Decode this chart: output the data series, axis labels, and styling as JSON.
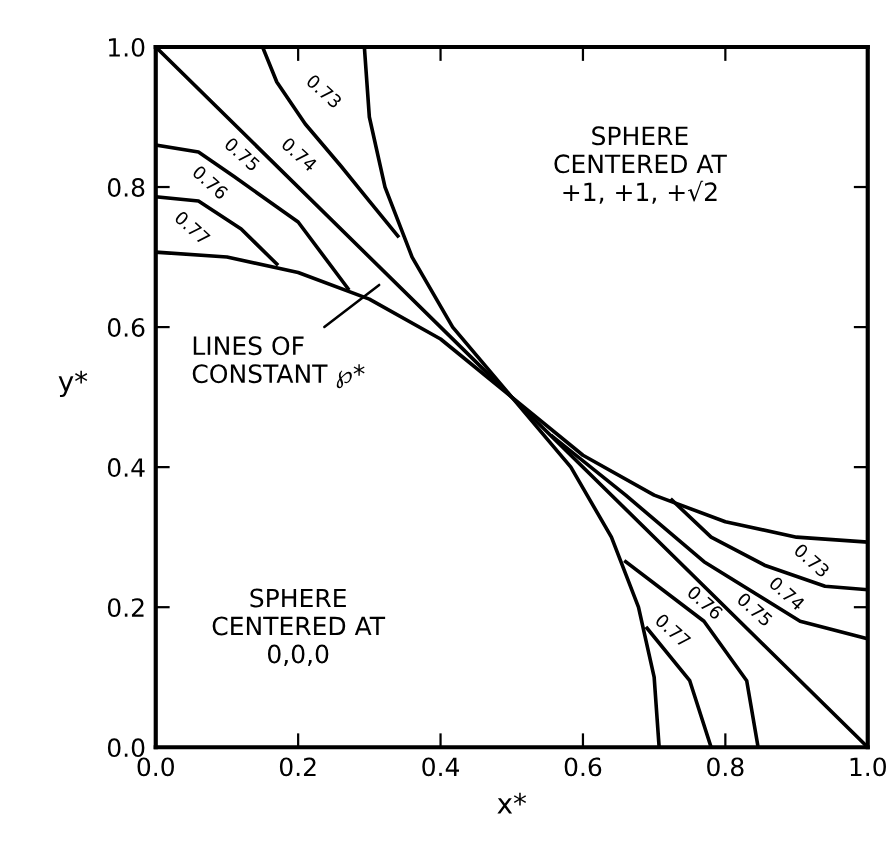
{
  "chart_data": {
    "type": "line",
    "xlabel": "x*",
    "ylabel": "y*",
    "xlim": [
      0,
      1
    ],
    "ylim": [
      0,
      1
    ],
    "xticks": [
      {
        "value": 0,
        "label": "0.0"
      },
      0.2,
      0.4,
      0.6,
      0.8,
      {
        "value": 1,
        "label": "1.0"
      }
    ],
    "yticks": [
      {
        "value": 0,
        "label": "0.0"
      },
      0.2,
      0.4,
      0.6,
      0.8,
      {
        "value": 1,
        "label": "1.0"
      }
    ],
    "grid": false,
    "legend": false,
    "marker": "none",
    "line_style": "solid",
    "series": [
      {
        "color": "#000000",
        "x": [
          0,
          0.1,
          0.2,
          0.3,
          0.4,
          0.5,
          0.583,
          0.64,
          0.678,
          0.7,
          0.707
        ],
        "values": [
          0.707,
          0.7,
          0.678,
          0.64,
          0.583,
          0.5,
          0.4,
          0.3,
          0.2,
          0.1,
          0
        ]
      },
      {
        "color": "#000000",
        "x": [
          0.293,
          0.3,
          0.322,
          0.36,
          0.417,
          0.5,
          0.6,
          0.7,
          0.8,
          0.9,
          1.0
        ],
        "values": [
          1.0,
          0.9,
          0.8,
          0.7,
          0.6,
          0.5,
          0.417,
          0.36,
          0.322,
          0.3,
          0.293
        ]
      },
      {
        "color": "#000000",
        "x": [
          0,
          1
        ],
        "values": [
          1,
          0
        ]
      },
      {
        "color": "#000000",
        "x": [
          0.15,
          0.17,
          0.21,
          0.26,
          0.3,
          0.34
        ],
        "values": [
          1.0,
          0.95,
          0.89,
          0.83,
          0.78,
          0.73
        ]
      },
      {
        "color": "#000000",
        "x": [
          0,
          0.06,
          0.11,
          0.2,
          0.27
        ],
        "values": [
          0.86,
          0.85,
          0.815,
          0.75,
          0.655
        ]
      },
      {
        "color": "#000000",
        "x": [
          0,
          0.06,
          0.12,
          0.17
        ],
        "values": [
          0.786,
          0.78,
          0.74,
          0.69
        ]
      },
      {
        "color": "#000000",
        "x": [
          0.725,
          0.78,
          0.855,
          0.94,
          1.0
        ],
        "values": [
          0.353,
          0.3,
          0.26,
          0.23,
          0.225
        ]
      },
      {
        "color": "#000000",
        "x": [
          0.557,
          0.66,
          0.77,
          0.905,
          1.0
        ],
        "values": [
          0.444,
          0.36,
          0.265,
          0.18,
          0.155
        ]
      },
      {
        "color": "#000000",
        "x": [
          0.66,
          0.77,
          0.83,
          0.846
        ],
        "values": [
          0.265,
          0.18,
          0.095,
          0
        ]
      },
      {
        "color": "#000000",
        "x": [
          0.69,
          0.75,
          0.78
        ],
        "values": [
          0.17,
          0.095,
          0
        ]
      }
    ],
    "annotations": [
      "0.73",
      "0.74",
      "0.75",
      "0.76",
      "0.77",
      "0.73",
      "0.74",
      "0.75",
      "0.76",
      "0.77",
      "SPHERE\nCENTERED AT\n+1, +1, +√2",
      "SPHERE\nCENTERED AT\n0,0,0",
      {
        "text": "LINES OF\nCONSTANT ℘*",
        "x": 0.32,
        "y": 0.665
      }
    ]
  }
}
